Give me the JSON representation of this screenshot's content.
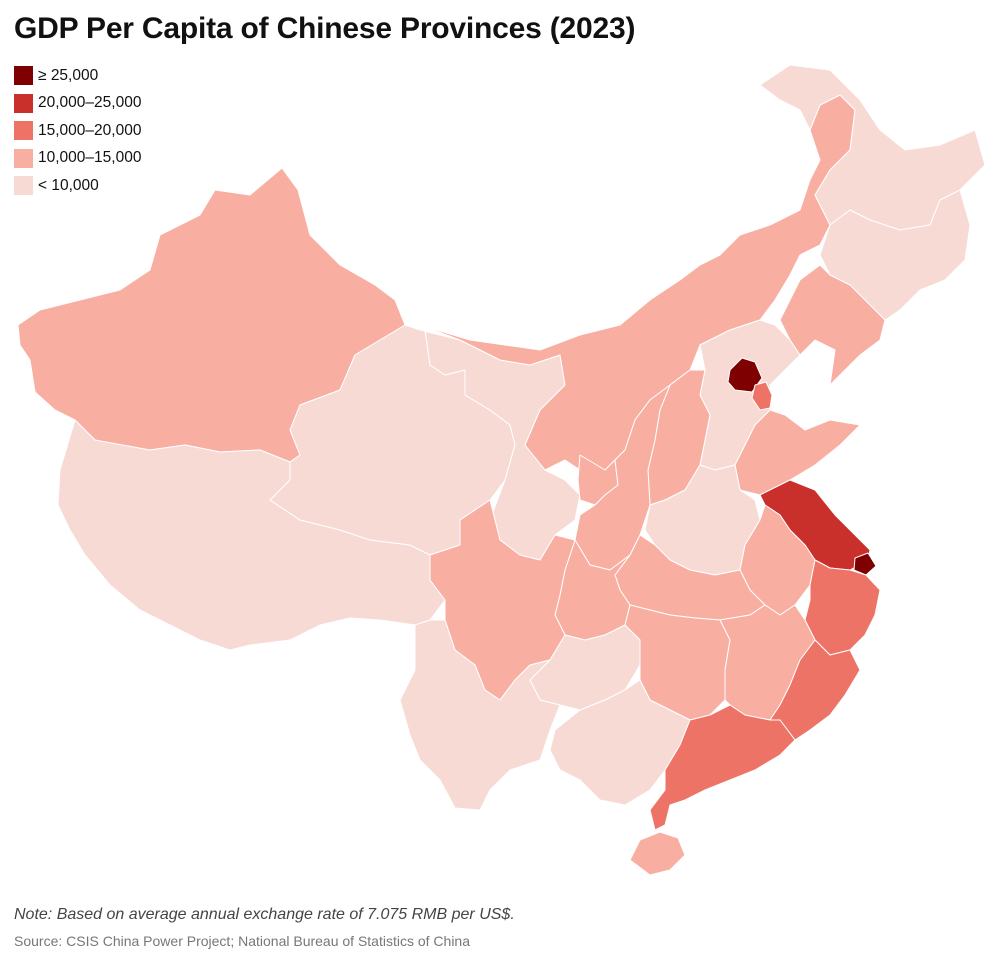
{
  "title": "GDP Per Capita of Chinese Provinces (2023)",
  "legend": [
    {
      "label": "≥ 25,000",
      "color": "#7f0000"
    },
    {
      "label": "20,000–25,000",
      "color": "#c9302c"
    },
    {
      "label": "15,000–20,000",
      "color": "#ee7367"
    },
    {
      "label": "10,000–15,000",
      "color": "#f9aea2"
    },
    {
      "label": "< 10,000",
      "color": "#f7dad4"
    }
  ],
  "map_data": {
    "type": "choropleth",
    "unit": "US$",
    "regions": [
      {
        "name": "Xinjiang",
        "class": "10,000–15,000"
      },
      {
        "name": "Tibet",
        "class": "< 10,000"
      },
      {
        "name": "Qinghai",
        "class": "< 10,000"
      },
      {
        "name": "Gansu",
        "class": "< 10,000"
      },
      {
        "name": "Inner Mongolia",
        "class": "10,000–15,000"
      },
      {
        "name": "Heilongjiang",
        "class": "< 10,000"
      },
      {
        "name": "Jilin",
        "class": "< 10,000"
      },
      {
        "name": "Liaoning",
        "class": "10,000–15,000"
      },
      {
        "name": "Beijing",
        "class": "≥ 25,000"
      },
      {
        "name": "Tianjin",
        "class": "15,000–20,000"
      },
      {
        "name": "Hebei",
        "class": "< 10,000"
      },
      {
        "name": "Shandong",
        "class": "10,000–15,000"
      },
      {
        "name": "Shanxi",
        "class": "10,000–15,000"
      },
      {
        "name": "Shaanxi",
        "class": "10,000–15,000"
      },
      {
        "name": "Ningxia",
        "class": "10,000–15,000"
      },
      {
        "name": "Henan",
        "class": "< 10,000"
      },
      {
        "name": "Jiangsu",
        "class": "20,000–25,000"
      },
      {
        "name": "Shanghai",
        "class": "≥ 25,000"
      },
      {
        "name": "Zhejiang",
        "class": "15,000–20,000"
      },
      {
        "name": "Anhui",
        "class": "10,000–15,000"
      },
      {
        "name": "Hubei",
        "class": "10,000–15,000"
      },
      {
        "name": "Chongqing",
        "class": "10,000–15,000"
      },
      {
        "name": "Sichuan",
        "class": "10,000–15,000"
      },
      {
        "name": "Yunnan",
        "class": "< 10,000"
      },
      {
        "name": "Guizhou",
        "class": "< 10,000"
      },
      {
        "name": "Hunan",
        "class": "10,000–15,000"
      },
      {
        "name": "Jiangxi",
        "class": "10,000–15,000"
      },
      {
        "name": "Fujian",
        "class": "15,000–20,000"
      },
      {
        "name": "Guangdong",
        "class": "15,000–20,000"
      },
      {
        "name": "Guangxi",
        "class": "< 10,000"
      },
      {
        "name": "Hainan",
        "class": "10,000–15,000"
      }
    ]
  },
  "note": "Note: Based on average annual exchange rate of 7.075 RMB per US$.",
  "source": "Source: CSIS China Power Project; National Bureau of Statistics of China"
}
